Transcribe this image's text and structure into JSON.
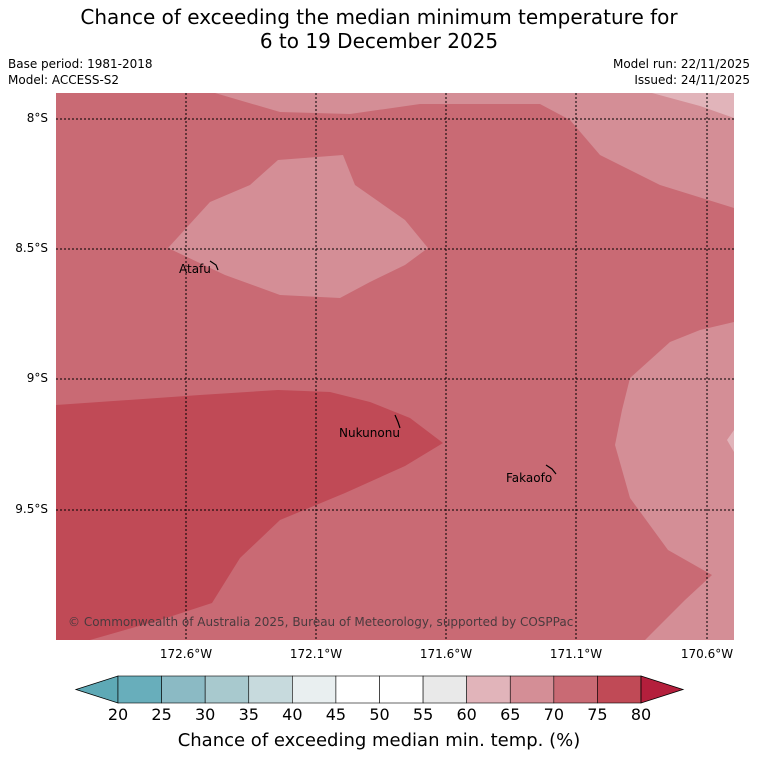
{
  "title": {
    "line1": "Chance of exceeding the median minimum temperature for",
    "line2": "6 to 19 December 2025"
  },
  "meta": {
    "base_period": "Base period: 1981-2018",
    "model": "Model: ACCESS-S2",
    "model_run": "Model run: 22/11/2025",
    "issued": "Issued: 24/11/2025"
  },
  "map": {
    "lat_labels": [
      "8°S",
      "8.5°S",
      "9°S",
      "9.5°S"
    ],
    "lon_labels": [
      "172.6°W",
      "172.1°W",
      "171.6°W",
      "171.1°W",
      "170.6°W"
    ],
    "places": [
      "Atafu",
      "Nukunonu",
      "Fakaofo"
    ],
    "copyright": "© Commonwealth of Australia 2025, Bureau of Meteorology, supported by COSPPac",
    "colors": {
      "band_60_65": "#e1b4ba",
      "band_65_70": "#d48e96",
      "band_70_75": "#c96a74",
      "band_75_80": "#c04a56"
    }
  },
  "colorbar": {
    "ticks": [
      "20",
      "25",
      "30",
      "35",
      "40",
      "45",
      "50",
      "55",
      "60",
      "65",
      "70",
      "75",
      "80"
    ],
    "colors": [
      "#5ea9b6",
      "#68aebb",
      "#8bbac4",
      "#a8c9ce",
      "#c7dadd",
      "#e9eff0",
      "#ffffff",
      "#ffffff",
      "#e9e9e9",
      "#e1b4ba",
      "#d48e96",
      "#c96a74",
      "#c04a56",
      "#b41f3c"
    ],
    "label": "Chance of exceeding median min. temp. (%)"
  }
}
